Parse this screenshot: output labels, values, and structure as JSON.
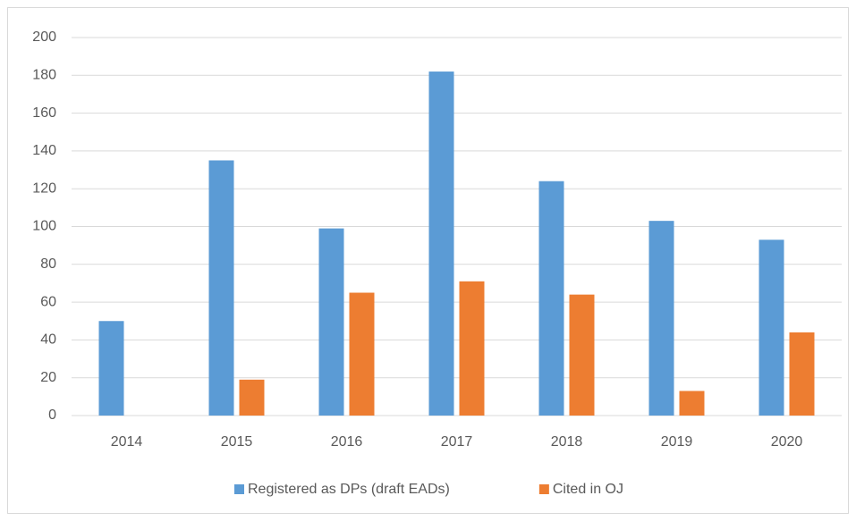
{
  "chart_data": {
    "type": "bar",
    "categories": [
      "2014",
      "2015",
      "2016",
      "2017",
      "2018",
      "2019",
      "2020"
    ],
    "series": [
      {
        "name": "Registered as DPs (draft EADs)",
        "color": "#5b9bd5",
        "values": [
          50,
          135,
          99,
          182,
          124,
          103,
          93
        ]
      },
      {
        "name": "Cited in OJ",
        "color": "#ed7d31",
        "values": [
          0,
          19,
          65,
          71,
          64,
          13,
          44
        ]
      }
    ],
    "ylim": [
      0,
      200
    ],
    "yticks": [
      0,
      20,
      40,
      60,
      80,
      100,
      120,
      140,
      160,
      180,
      200
    ],
    "grid": true,
    "legend": "bottom"
  }
}
